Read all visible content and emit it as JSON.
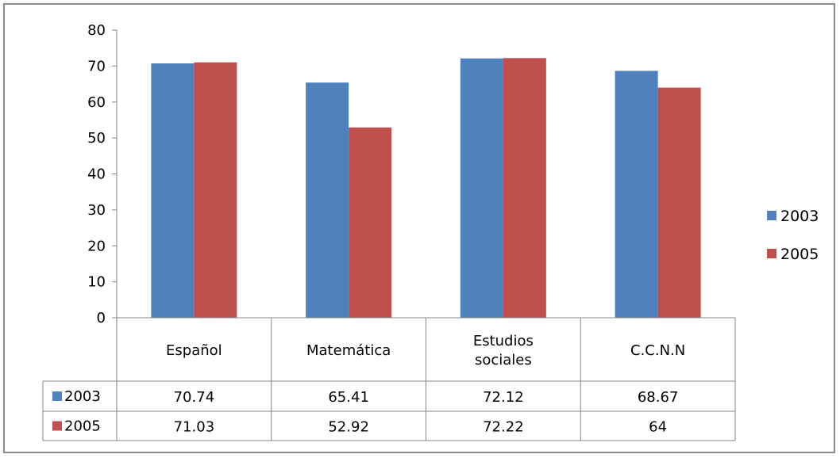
{
  "chart_data": {
    "type": "bar",
    "categories": [
      "Español",
      "Matemática",
      "Estudios sociales",
      "C.C.N.N"
    ],
    "series": [
      {
        "name": "2003",
        "color": "#4F81BD",
        "values": [
          70.74,
          65.41,
          72.12,
          68.67
        ]
      },
      {
        "name": "2005",
        "color": "#C0504D",
        "values": [
          71.03,
          52.92,
          72.22,
          64
        ]
      }
    ],
    "ylim": [
      0,
      80
    ],
    "yticks": [
      0,
      10,
      20,
      30,
      40,
      50,
      60,
      70,
      80
    ],
    "legend_position": "right",
    "grid": false,
    "data_table": true,
    "table_cells": [
      [
        "70.74",
        "65.41",
        "72.12",
        "68.67"
      ],
      [
        "71.03",
        "52.92",
        "72.22",
        "64"
      ]
    ]
  }
}
